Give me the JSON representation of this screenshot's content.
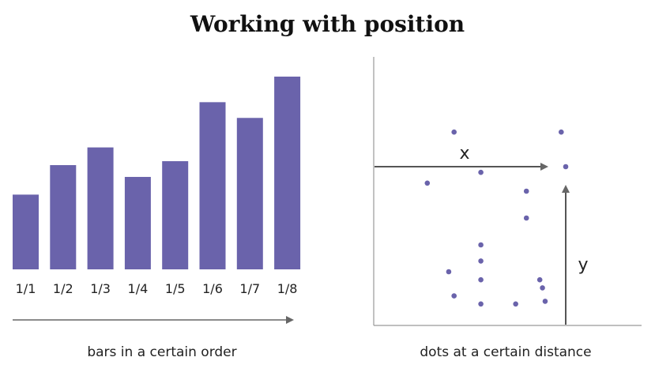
{
  "title": "Working with position",
  "left_panel": {
    "caption": "bars in a certain order",
    "categories": [
      "1/1",
      "1/2",
      "1/3",
      "1/4",
      "1/5",
      "1/6",
      "1/7",
      "1/8"
    ],
    "values": [
      38,
      53,
      62,
      47,
      55,
      85,
      77,
      98
    ],
    "bar_color": "#6a63ab"
  },
  "right_panel": {
    "caption": "dots at a certain distance",
    "x_label": "x",
    "y_label": "y",
    "dot_color": "#6a63ab",
    "dots": [
      [
        30,
        72
      ],
      [
        70,
        72
      ],
      [
        57,
        50
      ],
      [
        40,
        57
      ],
      [
        20,
        53
      ],
      [
        40,
        30
      ],
      [
        57,
        40
      ],
      [
        40,
        24
      ],
      [
        28,
        20
      ],
      [
        62,
        17
      ],
      [
        40,
        17
      ],
      [
        63,
        14
      ],
      [
        30,
        11
      ],
      [
        53,
        8
      ],
      [
        40,
        8
      ],
      [
        64,
        9
      ]
    ]
  }
}
